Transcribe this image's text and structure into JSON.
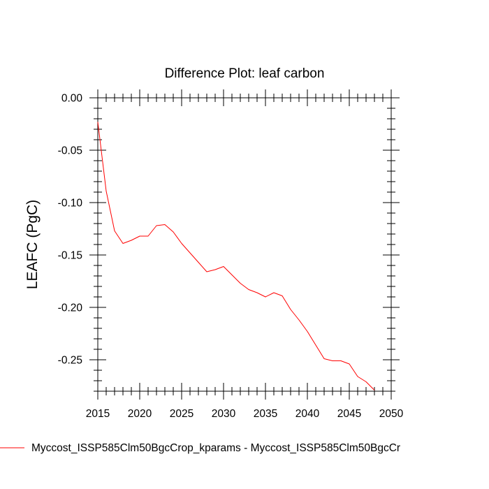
{
  "chart_data": {
    "type": "line",
    "title": "Difference Plot: leaf carbon",
    "xlabel": "",
    "ylabel": "LEAFC  (PgC)",
    "xlim": [
      2015,
      2050
    ],
    "ylim": [
      -0.28,
      0.0
    ],
    "x_ticks": [
      2015,
      2020,
      2025,
      2030,
      2035,
      2040,
      2045,
      2050
    ],
    "y_ticks": [
      0.0,
      -0.05,
      -0.1,
      -0.15,
      -0.2,
      -0.25
    ],
    "x_tick_labels": [
      "2015",
      "2020",
      "2025",
      "2030",
      "2035",
      "2040",
      "2045",
      "2050"
    ],
    "y_tick_labels": [
      "0.00",
      "-0.05",
      "-0.10",
      "-0.15",
      "-0.20",
      "-0.25"
    ],
    "grid": false,
    "legend_position": "bottom",
    "series": [
      {
        "name": "Myccost_ISSP585Clm50BgcCrop_kparams - Myccost_ISSP585Clm50BgcCr",
        "color": "#ff0000",
        "x": [
          2015,
          2016,
          2017,
          2018,
          2019,
          2020,
          2021,
          2022,
          2023,
          2024,
          2025,
          2026,
          2027,
          2028,
          2029,
          2030,
          2031,
          2032,
          2033,
          2034,
          2035,
          2036,
          2037,
          2038,
          2039,
          2040,
          2041,
          2042,
          2043,
          2044,
          2045,
          2046,
          2047,
          2048
        ],
        "y": [
          -0.023,
          -0.089,
          -0.127,
          -0.139,
          -0.136,
          -0.132,
          -0.132,
          -0.122,
          -0.121,
          -0.128,
          -0.139,
          -0.148,
          -0.157,
          -0.166,
          -0.164,
          -0.161,
          -0.169,
          -0.177,
          -0.183,
          -0.186,
          -0.19,
          -0.186,
          -0.189,
          -0.202,
          -0.212,
          -0.223,
          -0.236,
          -0.249,
          -0.251,
          -0.251,
          -0.254,
          -0.266,
          -0.271,
          -0.279
        ]
      }
    ]
  }
}
